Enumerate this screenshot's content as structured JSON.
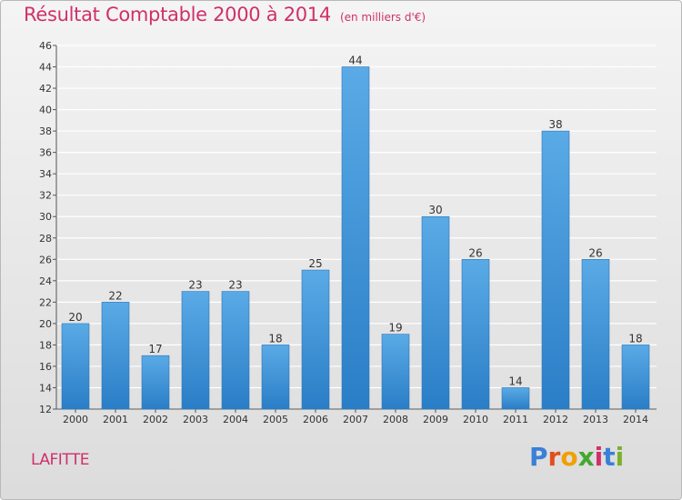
{
  "header": {
    "title": "Résultat Comptable 2000 à 2014",
    "subtitle": "(en milliers d'€)"
  },
  "footer": {
    "commune": "LAFITTE",
    "brand": "Proxiti"
  },
  "colors": {
    "title": "#d0306a",
    "bar_light": "#5aaae6",
    "bar_dark": "#2a7ec6",
    "logo": [
      "#3a7fd8",
      "#e0501c",
      "#f0a000",
      "#44a830",
      "#d0306a",
      "#3a7fd8",
      "#7ab02c"
    ]
  },
  "chart_data": {
    "type": "bar",
    "title": "Résultat Comptable 2000 à 2014",
    "subtitle": "(en milliers d'€)",
    "categories": [
      "2000",
      "2001",
      "2002",
      "2003",
      "2004",
      "2005",
      "2006",
      "2007",
      "2008",
      "2009",
      "2010",
      "2011",
      "2012",
      "2013",
      "2014"
    ],
    "values": [
      20,
      22,
      17,
      23,
      23,
      18,
      25,
      44,
      19,
      30,
      26,
      14,
      38,
      26,
      18
    ],
    "ylim": [
      12,
      46
    ],
    "yticks": [
      12,
      14,
      16,
      18,
      20,
      22,
      24,
      26,
      28,
      30,
      32,
      34,
      36,
      38,
      40,
      42,
      44,
      46
    ],
    "grid": true,
    "data_labels": true
  }
}
